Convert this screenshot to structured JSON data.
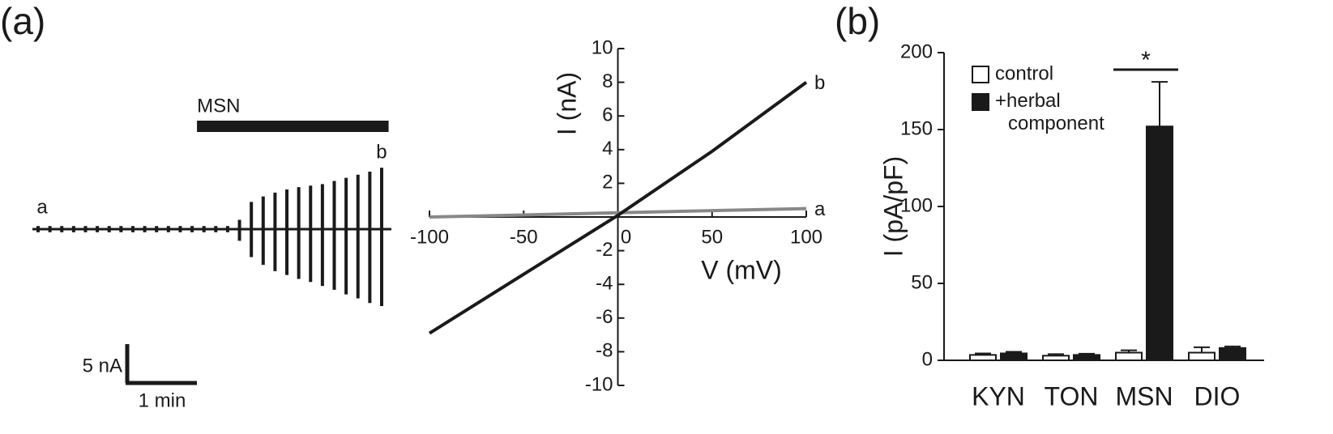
{
  "chart_data": [
    {
      "type": "trace",
      "panel_label": "(a)",
      "x": [
        0,
        0.17,
        0.34,
        0.51,
        0.68,
        0.85,
        1.02,
        1.19,
        1.36,
        1.53,
        1.7,
        1.87,
        2.04,
        2.21,
        2.38,
        2.55,
        2.72,
        2.89,
        3.06,
        3.23,
        3.4,
        3.57,
        3.74,
        3.91,
        4.08,
        4.25,
        4.42,
        4.59,
        4.76,
        4.93
      ],
      "upper": [
        0.4,
        0.4,
        0.4,
        0.4,
        0.4,
        0.4,
        0.4,
        0.4,
        0.4,
        0.4,
        0.4,
        0.4,
        0.4,
        0.4,
        0.4,
        0.4,
        0.4,
        1.2,
        3.5,
        4.2,
        4.7,
        5.1,
        5.4,
        5.6,
        5.8,
        6.2,
        6.6,
        7.0,
        7.4,
        7.9
      ],
      "lower": [
        -0.4,
        -0.4,
        -0.4,
        -0.4,
        -0.4,
        -0.4,
        -0.4,
        -0.4,
        -0.4,
        -0.4,
        -0.4,
        -0.4,
        -0.4,
        -0.4,
        -0.4,
        -0.4,
        -0.4,
        -1.5,
        -3.6,
        -4.6,
        -5.4,
        -5.9,
        -6.4,
        -6.8,
        -7.3,
        -7.8,
        -8.4,
        -8.9,
        -9.5,
        -9.9
      ],
      "start_label": "a",
      "end_label": "b",
      "annotation": {
        "text": "MSN",
        "start": 2.28,
        "end": 5.03
      },
      "y_scalebar": {
        "value": 5,
        "label": "5 nA"
      },
      "x_scalebar": {
        "value": 1,
        "label": "1 min"
      }
    },
    {
      "type": "line",
      "x_label": "V (mV)",
      "y_label": "I (nA)",
      "x": [
        -100,
        -50,
        0,
        50,
        100
      ],
      "series": [
        {
          "name": "a",
          "color": "#888888",
          "values": [
            0.0,
            0.12,
            0.25,
            0.38,
            0.5
          ]
        },
        {
          "name": "b",
          "color": "#1a1a1a",
          "values": [
            -6.9,
            -3.4,
            0.1,
            3.9,
            8.0
          ]
        }
      ],
      "xlim": [
        -100,
        100
      ],
      "ylim": [
        -10,
        10
      ],
      "xticks": [
        -100,
        -50,
        0,
        50,
        100
      ],
      "yticks": [
        10,
        8,
        6,
        4,
        2,
        -2,
        -4,
        -6,
        -8,
        -10
      ]
    },
    {
      "type": "bar",
      "panel_label": "(b)",
      "y_label": "I (pA/pF)",
      "categories": [
        "KYN",
        "TON",
        "MSN",
        "DIO"
      ],
      "series": [
        {
          "name": "control",
          "color": "#ffffff",
          "values": [
            3.5,
            3,
            5,
            5
          ],
          "errors": [
            1,
            1,
            1.5,
            3.5
          ]
        },
        {
          "name": "+herbal component",
          "color": "#1a1a1a",
          "values": [
            4.5,
            3.5,
            152,
            8
          ],
          "errors": [
            1,
            0.8,
            29,
            1
          ]
        }
      ],
      "ylim": [
        0,
        200
      ],
      "yticks": [
        0,
        50,
        100,
        150,
        200
      ],
      "annotation": {
        "text": "*",
        "category": "MSN"
      },
      "legend": "top-left"
    }
  ]
}
